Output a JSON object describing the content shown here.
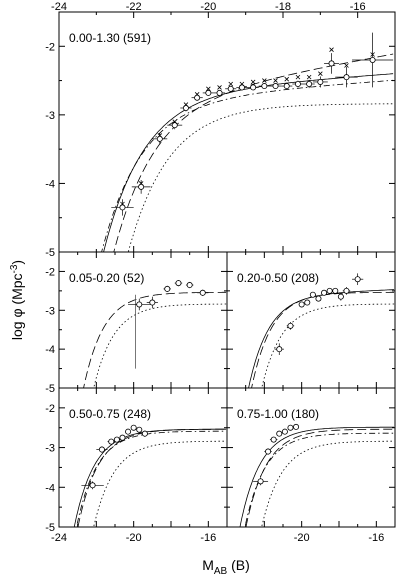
{
  "figure": {
    "ylabel": "log φ (Mpc",
    "ylabel_sup": "-3",
    "ylabel_close": ")",
    "xlabel_main": "M",
    "xlabel_sub": "AB",
    "xlabel_tail": " (B)"
  },
  "chart_data": [
    {
      "type": "scatter",
      "panel": "top",
      "label": "0.00-1.30 (591)",
      "xlim": [
        -24,
        -15
      ],
      "ylim": [
        -5,
        -1.5
      ],
      "xticks_top": [
        "-24",
        "-22",
        "-20",
        "-18",
        "-16"
      ],
      "yticks": [
        "-2",
        "-3",
        "-4",
        "-5"
      ],
      "series": [
        {
          "marker": "circle",
          "x": [
            -22.3,
            -21.8,
            -21.3,
            -20.9,
            -20.6,
            -20.3,
            -20.0,
            -19.7,
            -19.4,
            -19.1,
            -18.8,
            -18.5,
            -18.2,
            -17.9,
            -17.6,
            -17.3,
            -17.0,
            -16.7,
            -16.3,
            -15.6
          ],
          "y": [
            -4.35,
            -4.05,
            -3.35,
            -3.15,
            -2.9,
            -2.75,
            -2.68,
            -2.68,
            -2.62,
            -2.6,
            -2.6,
            -2.58,
            -2.58,
            -2.58,
            -2.55,
            -2.55,
            -2.52,
            -2.25,
            -2.45,
            -2.2
          ],
          "xerr": [
            0.3,
            0.25,
            0.2,
            0.2,
            0.15,
            0.15,
            0.15,
            0.15,
            0.15,
            0.15,
            0.15,
            0.15,
            0.15,
            0.15,
            0.15,
            0.15,
            0.2,
            0.2,
            0.3,
            0.55
          ],
          "yerr": [
            0.12,
            0.1,
            0.08,
            0.06,
            0.05,
            0.04,
            0.04,
            0.04,
            0.04,
            0.04,
            0.04,
            0.04,
            0.04,
            0.05,
            0.05,
            0.06,
            0.08,
            0.15,
            0.15,
            0.4
          ]
        },
        {
          "marker": "cross",
          "x": [
            -22.3,
            -21.8,
            -21.3,
            -20.9,
            -20.6,
            -20.3,
            -20.0,
            -19.7,
            -19.4,
            -19.1,
            -18.8,
            -18.5,
            -18.2,
            -17.9,
            -17.6,
            -17.3,
            -17.0,
            -16.7,
            -16.3,
            -15.6
          ],
          "y": [
            -4.3,
            -4.0,
            -3.3,
            -3.1,
            -2.85,
            -2.7,
            -2.62,
            -2.6,
            -2.55,
            -2.55,
            -2.52,
            -2.5,
            -2.5,
            -2.48,
            -2.45,
            -2.45,
            -2.4,
            -2.05,
            -2.28,
            -2.12
          ]
        }
      ],
      "curves": [
        {
          "style": "solid",
          "mstar": -21.0,
          "phistar": -2.6,
          "alpha": -1.1
        },
        {
          "style": "long-dash",
          "mstar": -20.8,
          "phistar": -2.65,
          "alpha": -1.25
        },
        {
          "style": "dash-dot",
          "mstar": -21.1,
          "phistar": -2.7,
          "alpha": -1.1
        },
        {
          "style": "dotted",
          "mstar": -20.4,
          "phistar": -2.8,
          "alpha": -1.0
        }
      ]
    },
    {
      "type": "scatter",
      "panel": "mid-left",
      "label": "0.05-0.20 (52)",
      "xlim": [
        -24,
        -15
      ],
      "ylim": [
        -5,
        -1.5
      ],
      "yticks": [
        "-2",
        "-3",
        "-4",
        "-5"
      ],
      "series": [
        {
          "marker": "circle",
          "x": [
            -19.7,
            -19.0,
            -18.2,
            -17.6,
            -17.0,
            -16.3
          ],
          "y": [
            -2.85,
            -2.8,
            -2.45,
            -2.3,
            -2.35,
            -2.55
          ],
          "xerr": [
            0.6,
            0.3,
            0.2,
            0.2,
            0.2,
            0.3
          ],
          "yerr": [
            0.15,
            0.15,
            0.08,
            0.08,
            0.08,
            0.08
          ]
        }
      ],
      "errorbar_extra": [
        {
          "x": -19.9,
          "y": -2.8,
          "ylow": -4.5,
          "yhigh": -2.6
        }
      ],
      "curves": [
        {
          "style": "long-dash",
          "mstar": -20.8,
          "phistar": -2.5,
          "alpha": -1.0
        },
        {
          "style": "dotted",
          "mstar": -20.4,
          "phistar": -2.8,
          "alpha": -1.0
        }
      ]
    },
    {
      "type": "scatter",
      "panel": "mid-right",
      "label": "0.20-0.50 (208)",
      "xlim": [
        -24,
        -15
      ],
      "ylim": [
        -5,
        -1.5
      ],
      "series": [
        {
          "marker": "circle",
          "x": [
            -21.2,
            -20.6,
            -20.0,
            -19.7,
            -19.4,
            -19.1,
            -18.8,
            -18.5,
            -18.2,
            -17.9,
            -17.6,
            -17.0
          ],
          "y": [
            -4.0,
            -3.4,
            -2.85,
            -2.8,
            -2.6,
            -2.7,
            -2.55,
            -2.5,
            -2.5,
            -2.65,
            -2.5,
            -2.2
          ],
          "xerr": [
            0.25,
            0.2,
            0.15,
            0.15,
            0.15,
            0.15,
            0.15,
            0.15,
            0.15,
            0.15,
            0.2,
            0.3
          ],
          "yerr": [
            0.15,
            0.1,
            0.06,
            0.05,
            0.05,
            0.05,
            0.05,
            0.06,
            0.06,
            0.1,
            0.1,
            0.15
          ]
        }
      ],
      "curves": [
        {
          "style": "solid",
          "mstar": -21.0,
          "phistar": -2.55,
          "alpha": -1.05
        },
        {
          "style": "long-dash",
          "mstar": -20.8,
          "phistar": -2.5,
          "alpha": -1.0
        },
        {
          "style": "dotted",
          "mstar": -20.4,
          "phistar": -2.8,
          "alpha": -1.0
        }
      ]
    },
    {
      "type": "scatter",
      "panel": "bottom-left",
      "label": "0.50-0.75 (248)",
      "xlim": [
        -24,
        -15
      ],
      "ylim": [
        -5,
        -1.5
      ],
      "xticks_bottom": [
        "-24",
        "-20",
        "-16"
      ],
      "yticks": [
        "-2",
        "-3",
        "-4",
        "-5"
      ],
      "series": [
        {
          "marker": "circle",
          "x": [
            -22.2,
            -21.7,
            -21.2,
            -20.9,
            -20.6,
            -20.3,
            -20.0,
            -19.7,
            -19.4
          ],
          "y": [
            -3.95,
            -3.05,
            -2.85,
            -2.8,
            -2.75,
            -2.6,
            -2.5,
            -2.55,
            -2.65
          ],
          "xerr": [
            0.6,
            0.3,
            0.2,
            0.15,
            0.15,
            0.15,
            0.15,
            0.15,
            0.15
          ],
          "yerr": [
            0.1,
            0.08,
            0.06,
            0.05,
            0.05,
            0.05,
            0.05,
            0.06,
            0.08
          ]
        }
      ],
      "curves": [
        {
          "style": "solid",
          "mstar": -21.3,
          "phistar": -2.5,
          "alpha": -1.0
        },
        {
          "style": "long-dash",
          "mstar": -21.1,
          "phistar": -2.5,
          "alpha": -1.0
        },
        {
          "style": "dash-dot",
          "mstar": -21.2,
          "phistar": -2.55,
          "alpha": -1.0
        },
        {
          "style": "dotted",
          "mstar": -20.4,
          "phistar": -2.8,
          "alpha": -1.0
        }
      ]
    },
    {
      "type": "scatter",
      "panel": "bottom-right",
      "label": "0.75-1.00 (180)",
      "xlim": [
        -24,
        -15
      ],
      "ylim": [
        -5,
        -1.5
      ],
      "xticks_bottom": [
        "-20",
        "-16"
      ],
      "series": [
        {
          "marker": "circle",
          "x": [
            -22.2,
            -21.8,
            -21.5,
            -21.2,
            -20.9,
            -20.6,
            -20.3
          ],
          "y": [
            -3.85,
            -3.1,
            -2.8,
            -2.65,
            -2.6,
            -2.5,
            -2.48
          ],
          "xerr": [
            0.4,
            0.2,
            0.2,
            0.15,
            0.15,
            0.15,
            0.15
          ],
          "yerr": [
            0.1,
            0.08,
            0.06,
            0.05,
            0.05,
            0.05,
            0.05
          ]
        }
      ],
      "curves": [
        {
          "style": "solid",
          "mstar": -21.4,
          "phistar": -2.45,
          "alpha": -1.0
        },
        {
          "style": "long-dash",
          "mstar": -21.1,
          "phistar": -2.5,
          "alpha": -1.0
        },
        {
          "style": "dash-dot",
          "mstar": -21.2,
          "phistar": -2.6,
          "alpha": -1.0
        },
        {
          "style": "dotted",
          "mstar": -20.4,
          "phistar": -2.8,
          "alpha": -1.0
        }
      ]
    }
  ]
}
